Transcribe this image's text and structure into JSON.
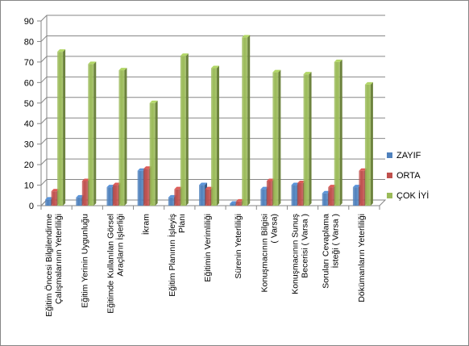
{
  "chart_data": {
    "type": "bar",
    "title": "",
    "xlabel": "",
    "ylabel": "",
    "ylim": [
      0,
      90
    ],
    "yticks": [
      0,
      10,
      20,
      30,
      40,
      50,
      60,
      70,
      80,
      90
    ],
    "grid": true,
    "legend_position": "right",
    "categories": [
      [
        "Eğitim Öncesi Bilgilendirme",
        "Çalışmalarının Yeterliliği"
      ],
      [
        "Eğitim Yerinin Uygunluğu"
      ],
      [
        "Eğitimde Kullanılan Görsel",
        "Araçların İşlerliği"
      ],
      [
        "İkram"
      ],
      [
        "Eğitim Planının İşleyiş",
        "Planı"
      ],
      [
        "Eğitimin Verimliliği"
      ],
      [
        "Sürenin Yeterliliği"
      ],
      [
        "Konuşmacının Bilgisi",
        "( Varsa)"
      ],
      [
        "Konuşmacının Sunuş",
        "Becerisi ( Varsa )"
      ],
      [
        "Soruları Cevaplama",
        "İsteği ( Varsa )"
      ],
      [
        "Dökümanların Yeterliliği"
      ]
    ],
    "series": [
      {
        "name": "ZAYIF",
        "color": "#4f81bd",
        "values": [
          3,
          4,
          9,
          17,
          4,
          10,
          1,
          8,
          10,
          6,
          9
        ]
      },
      {
        "name": "ORTA",
        "color": "#c0504d",
        "values": [
          7,
          12,
          10,
          18,
          8,
          8,
          2,
          12,
          11,
          9,
          17
        ]
      },
      {
        "name": "ÇOK İYİ",
        "color": "#9bbb59",
        "values": [
          75,
          69,
          66,
          50,
          73,
          67,
          82,
          65,
          64,
          70,
          59
        ]
      }
    ]
  }
}
